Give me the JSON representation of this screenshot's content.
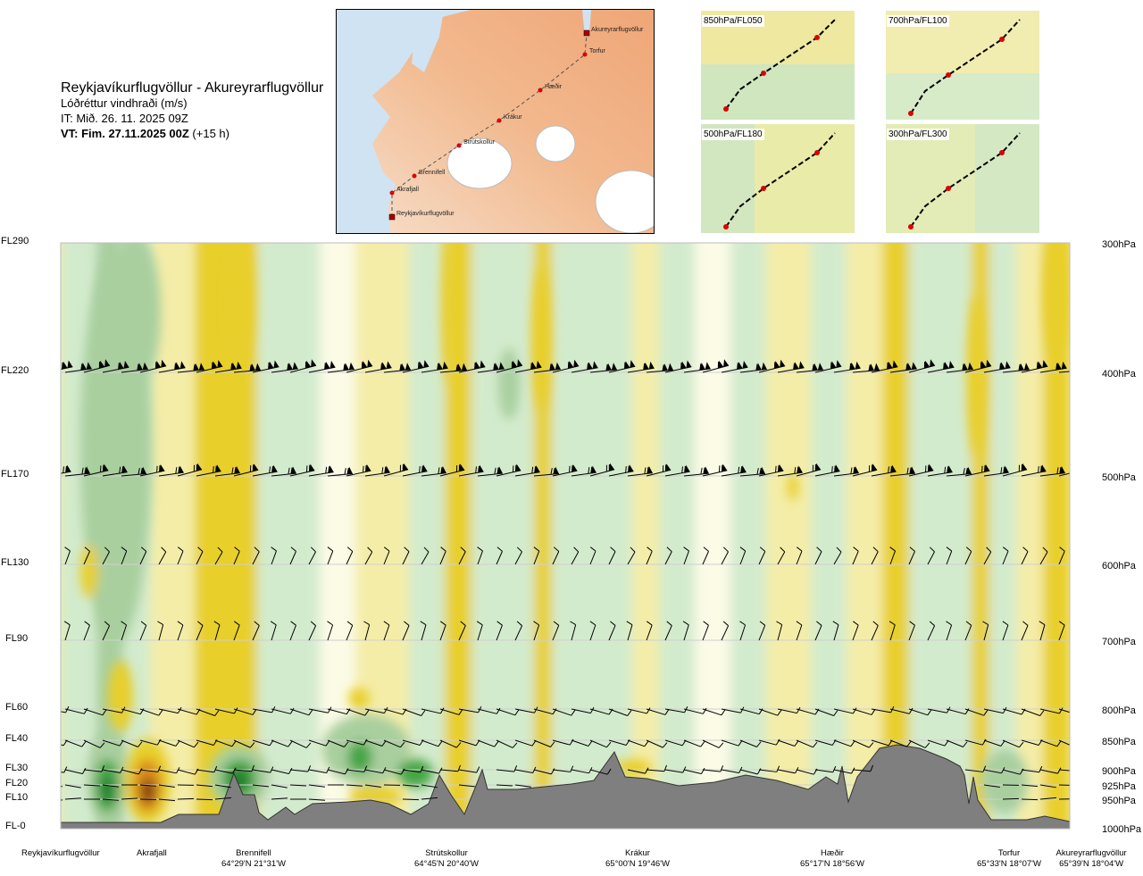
{
  "title": {
    "route": "Reykjavíkurflugvöllur - Akureyrarflugvöllur",
    "variable": "Lóðréttur vindhraði (m/s)",
    "it": "IT: Mið. 26. 11. 2025 09Z",
    "vt_bold": "VT: Fim. 27.11.2025 00Z",
    "vt_offset": " (+15 h)"
  },
  "map": {
    "waypoints": [
      "Akureyrarflugvöllur",
      "Torfur",
      "Hæðir",
      "Krákur",
      "Strútskollur",
      "Brennifell",
      "Akrafjall",
      "Reykjavíkurflugvöllur"
    ]
  },
  "mini_maps": [
    "850hPa/FL050",
    "700hPa/FL100",
    "500hPa/FL180",
    "300hPa/FL300"
  ],
  "chart_data": {
    "type": "heatmap",
    "title": "Lóðréttur vindhraði (m/s)",
    "y_left_labels": [
      "FL290",
      "FL220",
      "FL170",
      "FL130",
      "FL90",
      "FL60",
      "FL40",
      "FL30",
      "FL20",
      "FL10",
      "FL-0"
    ],
    "y_right_labels": [
      "300hPa",
      "400hPa",
      "500hPa",
      "600hPa",
      "700hPa",
      "800hPa",
      "850hPa",
      "900hPa",
      "925hPa",
      "950hPa",
      "1000hPa"
    ],
    "pressure_levels": [
      300,
      400,
      500,
      600,
      700,
      800,
      850,
      900,
      925,
      950,
      1000
    ],
    "locations": [
      {
        "name": "Reykjavíkurflugvöllur",
        "coord": ""
      },
      {
        "name": "Akrafjall",
        "coord": ""
      },
      {
        "name": "Brennifell",
        "coord": "64°29'N 21°31'W"
      },
      {
        "name": "Strútskollur",
        "coord": "64°45'N 20°40'W"
      },
      {
        "name": "Krákur",
        "coord": "65°00'N 19°46'W"
      },
      {
        "name": "Hæðir",
        "coord": "65°17'N 18°56'W"
      },
      {
        "name": "Torfur",
        "coord": "65°33'N 18°07'W"
      },
      {
        "name": "Akureyrarflugvöllur",
        "coord": "65°39'N 18°04'W"
      }
    ],
    "colors": {
      "strong_down": "#7a3a10",
      "down_3": "#d98a1a",
      "down_2": "#e8cf2a",
      "down_1": "#f4eda8",
      "neutral": "#fbfbe6",
      "up_1": "#d3ebcd",
      "up_2": "#a9cf9f",
      "up_3": "#45a545",
      "strong_up": "#1f7a2a",
      "terrain": "#7f7f7f"
    }
  }
}
